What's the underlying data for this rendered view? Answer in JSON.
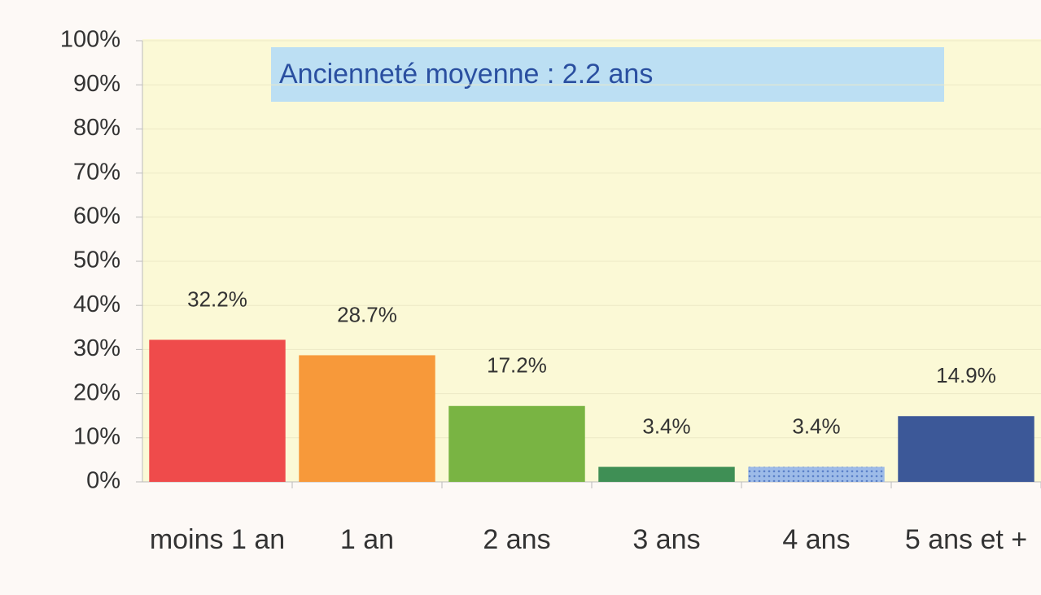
{
  "chart_data": {
    "type": "bar",
    "annotation": "Ancienneté moyenne : 2.2 ans",
    "categories": [
      "moins 1 an",
      "1 an",
      "2 ans",
      "3 ans",
      "4 ans",
      "5 ans et +"
    ],
    "values": [
      32.2,
      28.7,
      17.2,
      3.4,
      3.4,
      14.9
    ],
    "value_labels": [
      "32.2%",
      "28.7%",
      "17.2%",
      "3.4%",
      "3.4%",
      "14.9%"
    ],
    "colors": [
      "#ef4b4b",
      "#f7993a",
      "#79b443",
      "#3f8f55",
      "#9dbbe8",
      "#3c5898"
    ],
    "ylim": [
      0,
      100
    ],
    "yticks": [
      {
        "value": 0,
        "label": "0%"
      },
      {
        "value": 10,
        "label": "10%"
      },
      {
        "value": 20,
        "label": "20%"
      },
      {
        "value": 30,
        "label": "30%"
      },
      {
        "value": 40,
        "label": "40%"
      },
      {
        "value": 50,
        "label": "50%"
      },
      {
        "value": 60,
        "label": "60%"
      },
      {
        "value": 70,
        "label": "70%"
      },
      {
        "value": 80,
        "label": "80%"
      },
      {
        "value": 90,
        "label": "90%"
      },
      {
        "value": 100,
        "label": "100%"
      }
    ],
    "grid": true
  }
}
